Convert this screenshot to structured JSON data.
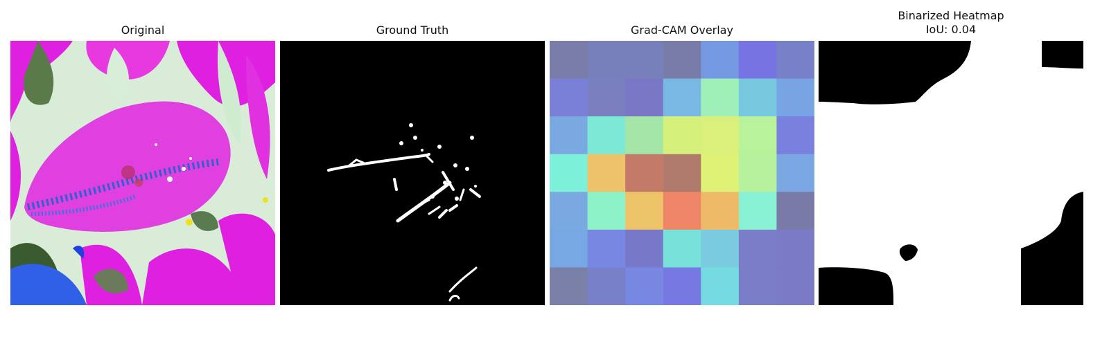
{
  "panels": [
    {
      "title": "Original"
    },
    {
      "title": "Ground Truth"
    },
    {
      "title": "Grad-CAM Overlay"
    },
    {
      "title_line1": "Binarized Heatmap",
      "title_line2": "IoU: 0.04"
    }
  ],
  "gradcam_grid": [
    [
      "#7a7da8",
      "#7880bb",
      "#7880bb",
      "#7a7ca8",
      "#7598e2",
      "#7674e2",
      "#7880c8"
    ],
    [
      "#7a80d8",
      "#7a7fbe",
      "#7a77c6",
      "#79b8e2",
      "#9ef0b8",
      "#78c9e0",
      "#78a4e4"
    ],
    [
      "#7aa8e0",
      "#7ce8d6",
      "#a4e6a8",
      "#d6f07c",
      "#daf07a",
      "#b8f29a",
      "#7a80de"
    ],
    [
      "#7cf0d8",
      "#eec26a",
      "#c47a68",
      "#b07a6c",
      "#e0f276",
      "#b6f29e",
      "#7aa6e2"
    ],
    [
      "#7aa8e0",
      "#8ef2c8",
      "#eec468",
      "#f08668",
      "#eeba68",
      "#8af2d4",
      "#7a7aa8"
    ],
    [
      "#78a8e4",
      "#7888e2",
      "#7878c8",
      "#76e2da",
      "#7acae0",
      "#7a7ec8",
      "#7a7ac6"
    ],
    [
      "#7a80a8",
      "#7880c8",
      "#7888e2",
      "#7878e2",
      "#76dae2",
      "#7a7ec8",
      "#7a7ac6"
    ]
  ]
}
